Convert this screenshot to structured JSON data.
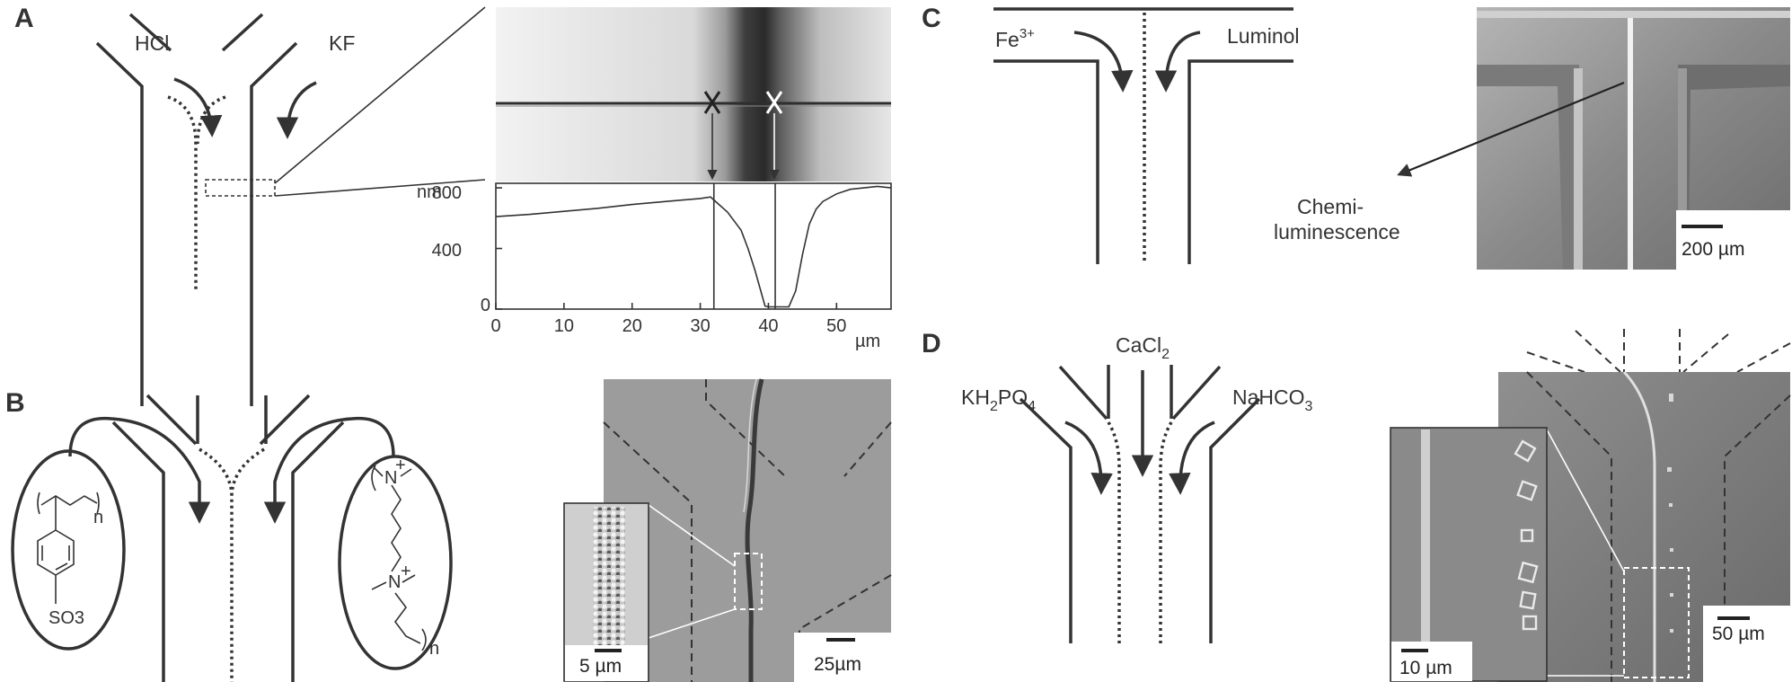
{
  "panels": {
    "A": {
      "letter": "A",
      "reagent_left": "HCl",
      "reagent_right": "KF",
      "plot": {
        "y_unit": "nm",
        "x_unit": "µm",
        "y_ticks": [
          "800",
          "400",
          "0"
        ],
        "x_ticks": [
          "0",
          "10",
          "20",
          "30",
          "40",
          "50"
        ]
      }
    },
    "B": {
      "letter": "B",
      "polymer_left_subscript": "n",
      "polymer_left_group": "SO3",
      "polymer_right_subscript": "n",
      "inset_scale": "5 µm",
      "main_scale": "25µm"
    },
    "C": {
      "letter": "C",
      "reagent_left": "Fe",
      "reagent_left_sup": "3+",
      "reagent_right": "Luminol",
      "annotation_line1": "Chemi-",
      "annotation_line2": "luminescence",
      "scale": "200 µm"
    },
    "D": {
      "letter": "D",
      "reagent_center": "CaCl",
      "reagent_center_sub": "2",
      "reagent_left_a": "KH",
      "reagent_left_sub1": "2",
      "reagent_left_b": "PO",
      "reagent_left_sub2": "4",
      "reagent_right_a": "NaHCO",
      "reagent_right_sub": "3",
      "inset_scale": "10 µm",
      "main_scale": "50 µm"
    }
  },
  "chart_data": {
    "type": "line",
    "xlabel": "µm",
    "ylabel": "nm",
    "xlim": [
      0,
      58
    ],
    "ylim": [
      0,
      830
    ],
    "x_ticks": [
      0,
      10,
      20,
      30,
      40,
      50
    ],
    "y_ticks": [
      0,
      400,
      800
    ],
    "series": [
      {
        "x": [
          0,
          5,
          10,
          15,
          20,
          25,
          30,
          31.5,
          32,
          34,
          36,
          37,
          38,
          39,
          39.5,
          40,
          41,
          42,
          43,
          44,
          45,
          46,
          47,
          48,
          50,
          52,
          54,
          56,
          58
        ],
        "y": [
          610,
          625,
          645,
          665,
          690,
          710,
          730,
          740,
          720,
          640,
          520,
          400,
          260,
          100,
          20,
          15,
          15,
          15,
          15,
          120,
          360,
          560,
          660,
          710,
          760,
          790,
          800,
          810,
          800
        ]
      }
    ],
    "markers_x": [
      32,
      41
    ]
  }
}
